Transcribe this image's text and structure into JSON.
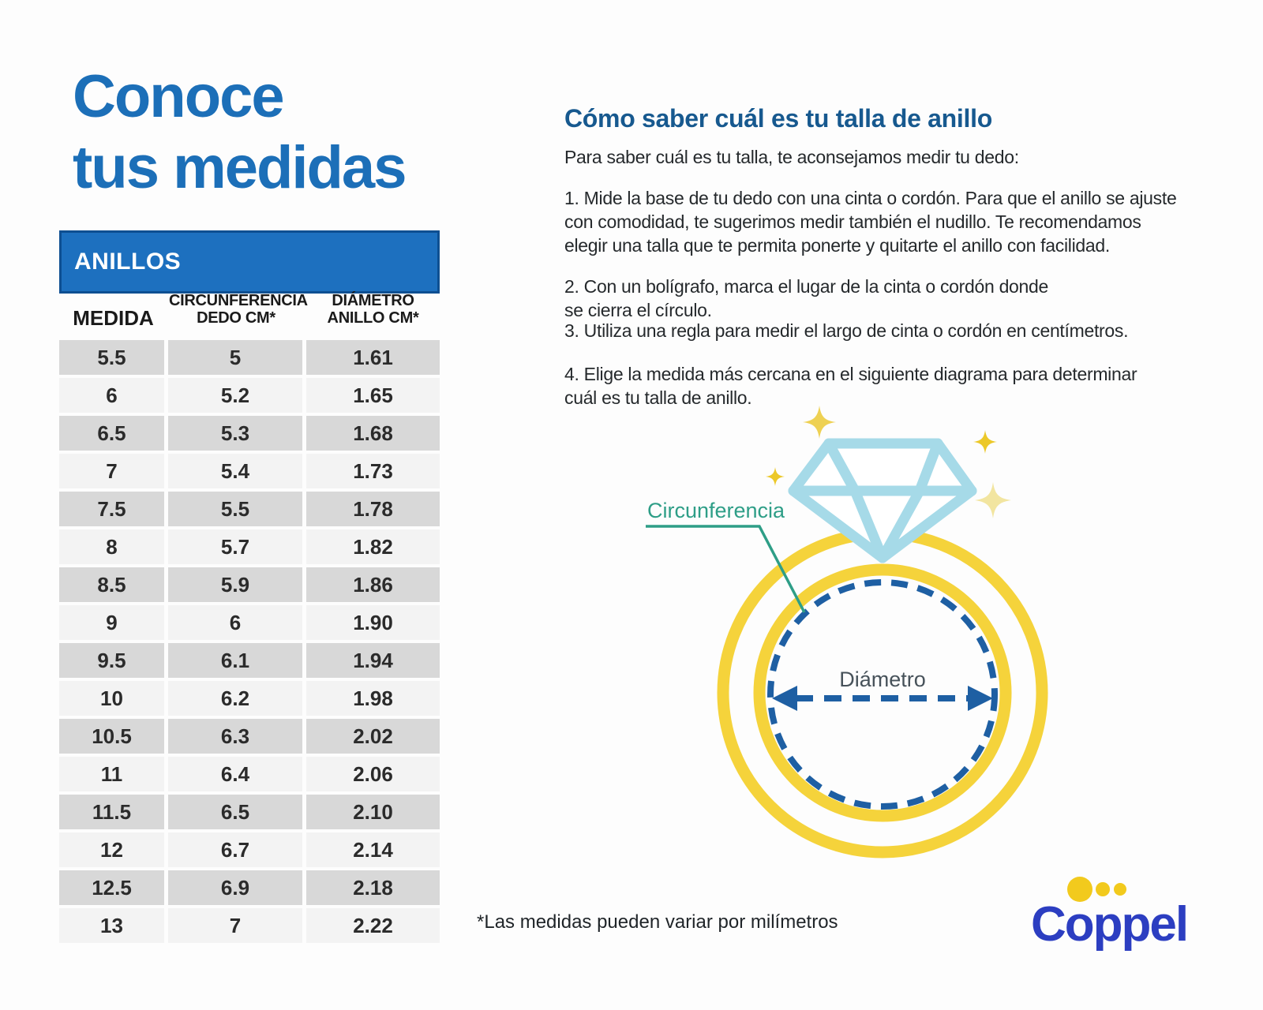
{
  "title": {
    "text": "Conoce\ntus medidas"
  },
  "size_table": {
    "header": "ANILLOS",
    "columns": [
      "MEDIDA",
      "CIRCUNFERENCIA\nDEDO CM*",
      "DIÁMETRO\nANILLO CM*"
    ],
    "rows": [
      [
        "5.5",
        "5",
        "1.61"
      ],
      [
        "6",
        "5.2",
        "1.65"
      ],
      [
        "6.5",
        "5.3",
        "1.68"
      ],
      [
        "7",
        "5.4",
        "1.73"
      ],
      [
        "7.5",
        "5.5",
        "1.78"
      ],
      [
        "8",
        "5.7",
        "1.82"
      ],
      [
        "8.5",
        "5.9",
        "1.86"
      ],
      [
        "9",
        "6",
        "1.90"
      ],
      [
        "9.5",
        "6.1",
        "1.94"
      ],
      [
        "10",
        "6.2",
        "1.98"
      ],
      [
        "10.5",
        "6.3",
        "2.02"
      ],
      [
        "11",
        "6.4",
        "2.06"
      ],
      [
        "11.5",
        "6.5",
        "2.10"
      ],
      [
        "12",
        "6.7",
        "2.14"
      ],
      [
        "12.5",
        "6.9",
        "2.18"
      ],
      [
        "13",
        "7",
        "2.22"
      ]
    ]
  },
  "instructions": {
    "heading": "Cómo saber cuál es tu talla de anillo",
    "intro": "Para saber cuál es tu talla, te aconsejamos medir tu dedo:",
    "step1": "1. Mide la base de tu dedo con una cinta o cordón. Para que el anillo se ajuste\ncon comodidad, te sugerimos medir también el nudillo. Te recomendamos\nelegir una talla que te permita ponerte y quitarte el anillo con facilidad.",
    "step2": "2. Con un bolígrafo, marca el lugar de la cinta o cordón donde\nse cierra el círculo.",
    "step3": "3. Utiliza una regla para medir el largo de cinta o cordón en centímetros.",
    "step4": "4. Elige la medida más cercana en el siguiente diagrama para determinar\ncuál es tu talla de anillo."
  },
  "diagram": {
    "circumference_label": "Circunferencia",
    "diameter_label": "Diámetro"
  },
  "footnote": "*Las medidas pueden variar por milímetros",
  "brand": {
    "logo_text": "Coppel"
  },
  "colors": {
    "title-blue": "#1c6fb8",
    "heading-blue": "#17598f",
    "table-header-bg": "#1d70bf",
    "table-header-border": "#0e4f92",
    "row-dark": "#d8d8d8",
    "row-light": "#f3f3f3",
    "ring-yellow": "#f5d33b",
    "diamond-cyan": "#a6dae8",
    "dash-blue": "#1e5fa3",
    "teal": "#2e9e87",
    "diameter-gray": "#47525a",
    "sparkle-gold": "#ecc829",
    "sparkle-soft": "#eed153",
    "sparkle-pale": "#f2e5a0",
    "coppel-blue": "#2c3ec1",
    "coppel-yellow": "#f2ca1d",
    "text": "#25292c"
  }
}
